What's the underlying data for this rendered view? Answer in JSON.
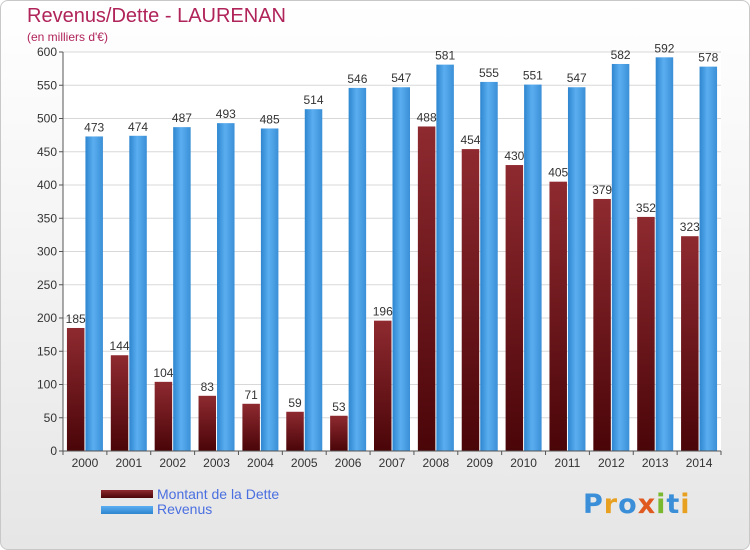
{
  "title": "Revenus/Dette - LAURENAN",
  "subtitle": "(en milliers d'€)",
  "logo": "Proxiti",
  "colors": {
    "dette": "#7a1a22",
    "revenus": "#4fa3e6",
    "title": "#b0245a",
    "legend_text": "#4a6fe0"
  },
  "chart_data": {
    "type": "bar",
    "categories": [
      "2000",
      "2001",
      "2002",
      "2003",
      "2004",
      "2005",
      "2006",
      "2007",
      "2008",
      "2009",
      "2010",
      "2011",
      "2012",
      "2013",
      "2014"
    ],
    "series": [
      {
        "name": "Montant de la Dette",
        "values": [
          185,
          144,
          104,
          83,
          71,
          59,
          53,
          196,
          488,
          454,
          430,
          405,
          379,
          352,
          323
        ]
      },
      {
        "name": "Revenus",
        "values": [
          473,
          474,
          487,
          493,
          485,
          514,
          546,
          547,
          581,
          555,
          551,
          547,
          582,
          592,
          578
        ]
      }
    ],
    "ylim": [
      0,
      600
    ],
    "yticks": [
      0,
      50,
      100,
      150,
      200,
      250,
      300,
      350,
      400,
      450,
      500,
      550,
      600
    ],
    "grid": true,
    "legend_position": "bottom-left"
  }
}
